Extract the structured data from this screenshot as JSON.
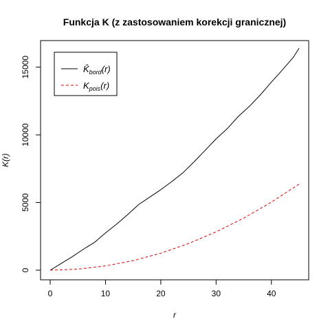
{
  "chart_data": {
    "type": "line",
    "title": "Funkcja K (z zastosowaniem korekcji granicznej)",
    "xlabel": "r",
    "ylabel": "K(r)",
    "xlim": [
      0,
      45
    ],
    "ylim": [
      0,
      16000
    ],
    "x_ticks": [
      0,
      10,
      20,
      30,
      40
    ],
    "y_ticks": [
      0,
      5000,
      10000,
      15000
    ],
    "legend_placement": "top-left",
    "grid": false,
    "series": [
      {
        "name": "K̂_bord(r)",
        "legend_main": "K̂",
        "legend_sub": "bord",
        "legend_tail": "(r)",
        "color": "#000000",
        "linestyle": "solid",
        "x": [
          0,
          2,
          4,
          6,
          8,
          10,
          12,
          14,
          16,
          18,
          20,
          22,
          24,
          26,
          28,
          30,
          32,
          34,
          36,
          38,
          40,
          42,
          44,
          45
        ],
        "y": [
          0,
          500,
          1000,
          1550,
          2050,
          2750,
          3400,
          4100,
          4850,
          5400,
          5950,
          6550,
          7200,
          8000,
          8850,
          9700,
          10450,
          11350,
          12100,
          12950,
          13900,
          14800,
          15750,
          16400
        ]
      },
      {
        "name": "K_pois(r)",
        "legend_main": "K",
        "legend_sub": "pois",
        "legend_tail": "(r)",
        "color": "#dd0000",
        "linestyle": "dashed",
        "x": [
          0,
          5,
          10,
          15,
          20,
          25,
          30,
          35,
          40,
          45
        ],
        "y": [
          0,
          78.5,
          314.2,
          706.9,
          1256.6,
          1963.5,
          2827.4,
          3848.5,
          5026.5,
          6361.7
        ]
      }
    ]
  }
}
